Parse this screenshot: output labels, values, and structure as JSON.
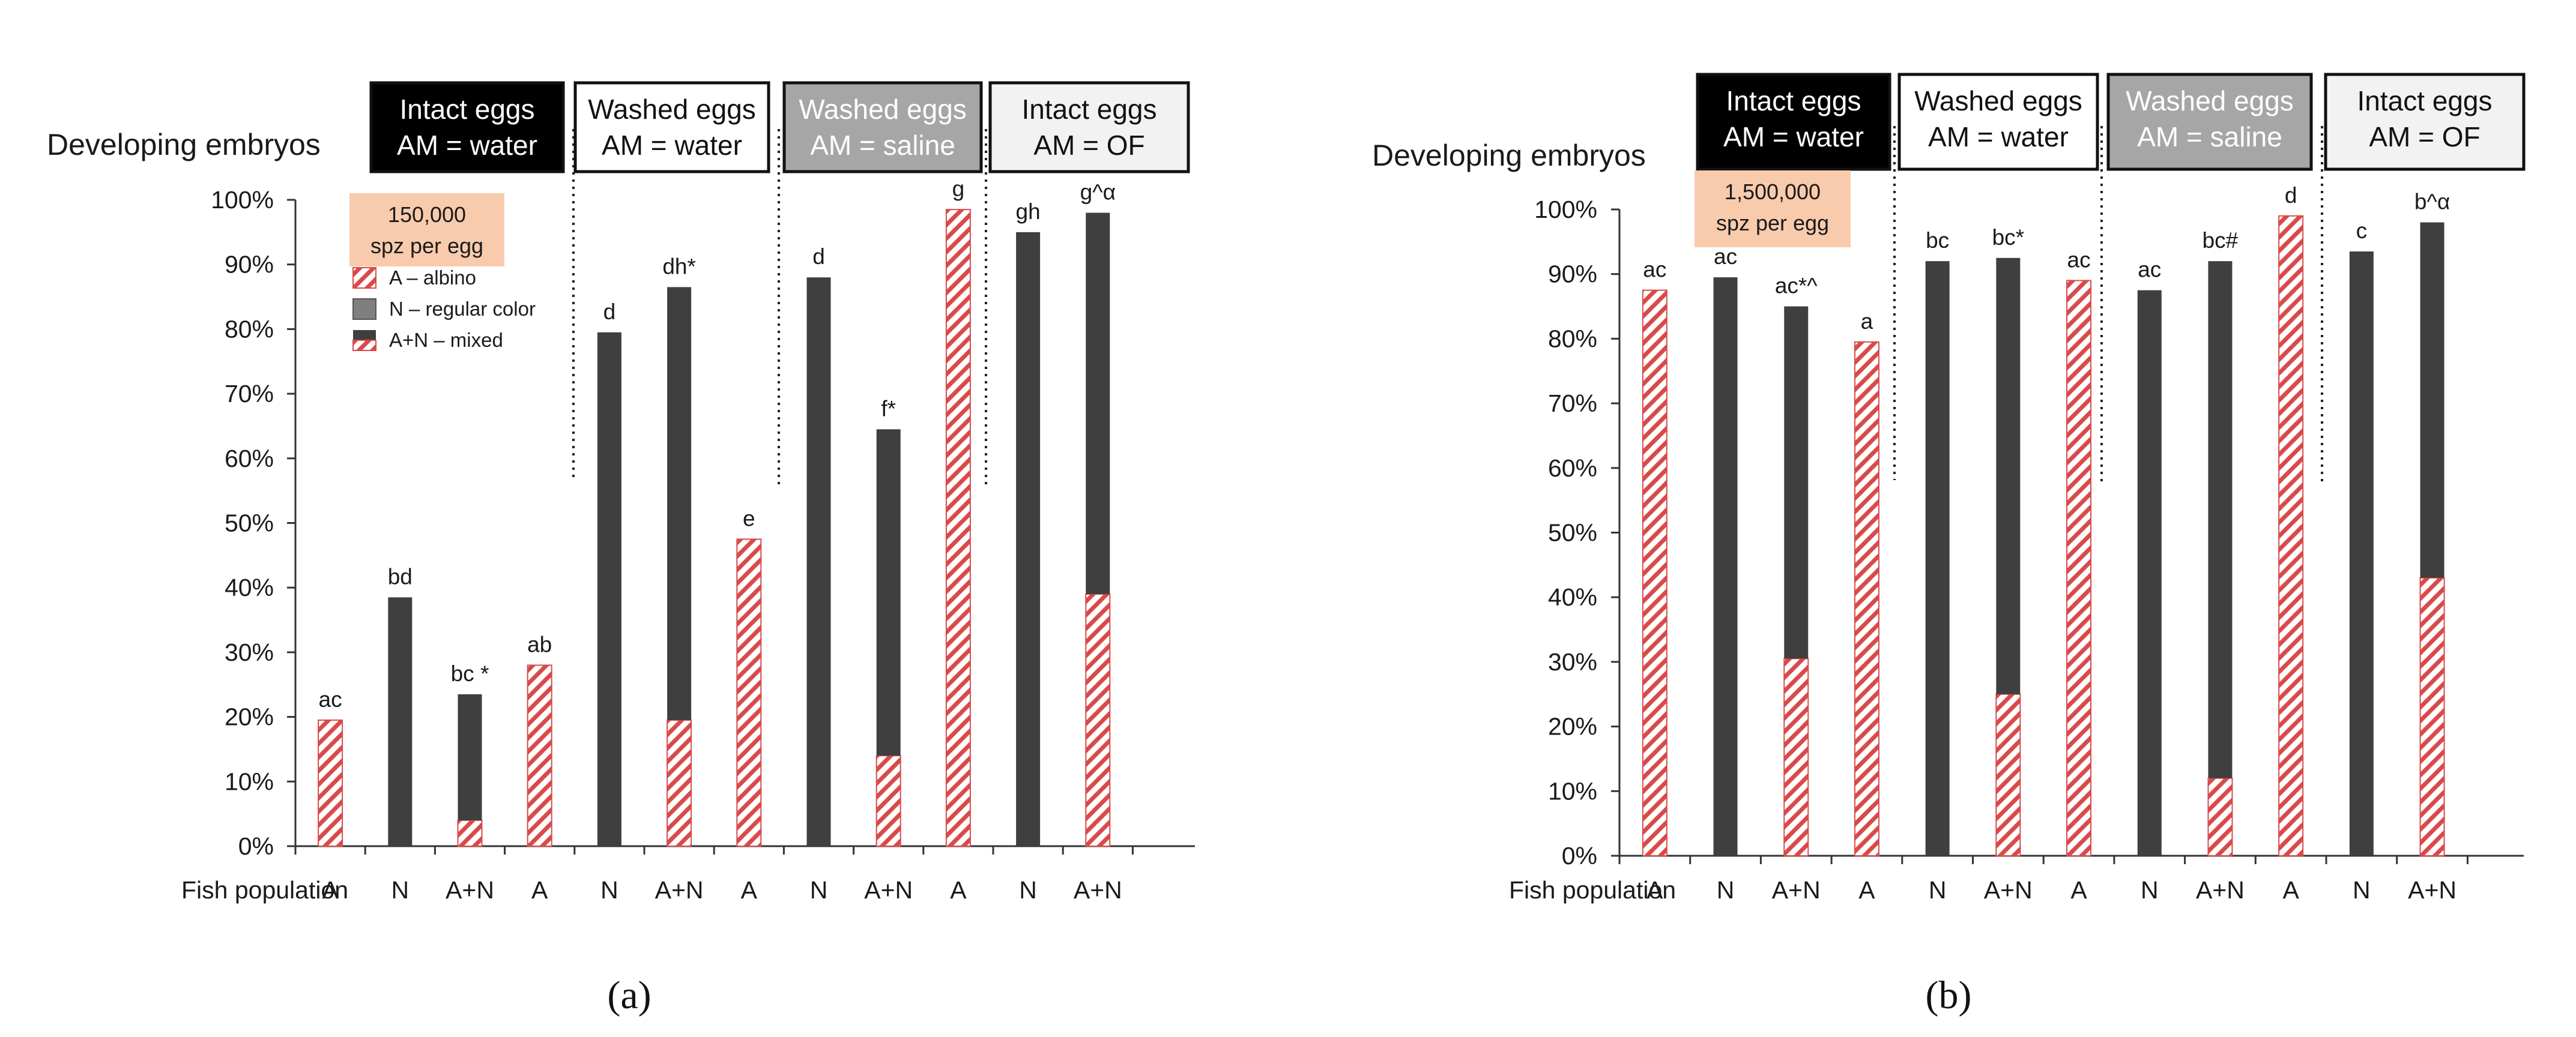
{
  "colors": {
    "albino_stripe": "#d94a4a",
    "normal": "#3f3f3f",
    "normal_legend": "#7f7f7f",
    "info_box": "#f8cbad",
    "cond_black": "#000000",
    "cond_white": "#ffffff",
    "cond_gray": "#a6a6a6",
    "cond_light": "#f2f2f2"
  },
  "chart_data": [
    {
      "type": "bar",
      "panel_label": "(a)",
      "ylabel": "Developing embryos",
      "xlabel": "Fish population",
      "ylim": [
        0,
        100
      ],
      "yticks": [
        "0%",
        "10%",
        "20%",
        "30%",
        "40%",
        "50%",
        "60%",
        "70%",
        "80%",
        "90%",
        "100%"
      ],
      "info_box": {
        "line1": "150,000",
        "line2": "spz per egg"
      },
      "legend": [
        "A – albino",
        "N – regular color",
        "A+N – mixed"
      ],
      "conditions": [
        {
          "line1": "Intact eggs",
          "line2": "AM = water",
          "style": "black"
        },
        {
          "line1": "Washed eggs",
          "line2": "AM = water",
          "style": "white"
        },
        {
          "line1": "Washed eggs",
          "line2": "AM = saline",
          "style": "gray"
        },
        {
          "line1": "Intact eggs",
          "line2": "AM = OF",
          "style": "light"
        }
      ],
      "categories": [
        "A",
        "N",
        "A+N",
        "A",
        "N",
        "A+N",
        "A",
        "N",
        "A+N",
        "A",
        "N",
        "A+N"
      ],
      "series": [
        {
          "name": "A – albino",
          "values": [
            19.5,
            0,
            4,
            28,
            0,
            19.5,
            47.5,
            0,
            14,
            98.5,
            0,
            39
          ]
        },
        {
          "name": "N – regular color",
          "values": [
            0,
            38.5,
            19.5,
            0,
            79.5,
            67,
            0,
            88,
            50.5,
            0,
            95,
            59
          ]
        }
      ],
      "totals": [
        19.5,
        38.5,
        23.5,
        28,
        79.5,
        86.5,
        47.5,
        88,
        64.5,
        98.5,
        95,
        98
      ],
      "significance": [
        "ac",
        "bd",
        "bc *",
        "ab",
        "d",
        "dh*",
        "e",
        "d",
        "f*",
        "g",
        "gh",
        "g^α"
      ]
    },
    {
      "type": "bar",
      "panel_label": "(b)",
      "ylabel": "Developing embryos",
      "xlabel": "Fish population",
      "ylim": [
        0,
        100
      ],
      "yticks": [
        "0%",
        "10%",
        "20%",
        "30%",
        "40%",
        "50%",
        "60%",
        "70%",
        "80%",
        "90%",
        "100%"
      ],
      "info_box": {
        "line1": "1,500,000",
        "line2": "spz per egg"
      },
      "conditions": [
        {
          "line1": "Intact eggs",
          "line2": "AM = water",
          "style": "black"
        },
        {
          "line1": "Washed eggs",
          "line2": "AM = water",
          "style": "white"
        },
        {
          "line1": "Washed eggs",
          "line2": "AM = saline",
          "style": "gray"
        },
        {
          "line1": "Intact eggs",
          "line2": "AM = OF",
          "style": "light"
        }
      ],
      "categories": [
        "A",
        "N",
        "A+N",
        "A",
        "N",
        "A+N",
        "A",
        "N",
        "A+N",
        "A",
        "N",
        "A+N"
      ],
      "series": [
        {
          "name": "A – albino",
          "values": [
            87.5,
            0,
            30.5,
            79.5,
            0,
            25,
            89,
            0,
            12,
            99,
            0,
            43
          ]
        },
        {
          "name": "N – regular color",
          "values": [
            0,
            89.5,
            54.5,
            0,
            92,
            67.5,
            0,
            87.5,
            80,
            0,
            93.5,
            55
          ]
        }
      ],
      "totals": [
        87.5,
        89.5,
        85,
        79.5,
        92,
        92.5,
        89,
        87.5,
        92,
        99,
        93.5,
        98
      ],
      "significance": [
        "ac",
        "ac",
        "ac*^",
        "a",
        "bc",
        "bc*",
        "ac",
        "ac",
        "bc#",
        "d",
        "c",
        "b^α"
      ]
    }
  ]
}
